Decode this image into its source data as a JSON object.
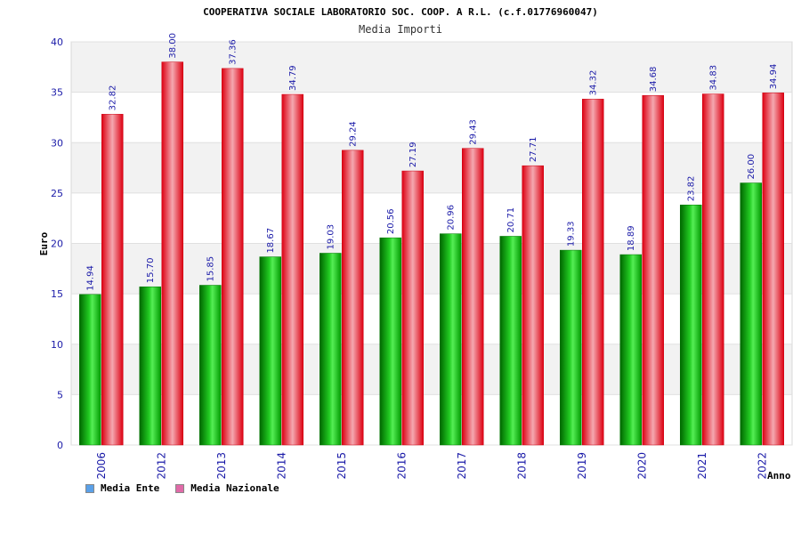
{
  "colors": {
    "ente": "#22bb22",
    "nazionale": "#ee1122",
    "legend_ente": "#5aa0e8",
    "legend_nazionale": "#e06aa8"
  },
  "chart_data": {
    "type": "bar",
    "title": "COOPERATIVA SOCIALE LABORATORIO SOC. COOP. A R.L. (c.f.01776960047)",
    "subtitle": "Media Importi",
    "xlabel": "Anno",
    "ylabel": "Euro",
    "ylim": [
      0,
      40
    ],
    "yticks": [
      0,
      5,
      10,
      15,
      20,
      25,
      30,
      35,
      40
    ],
    "grid": true,
    "legend_position": "bottom-left",
    "categories": [
      "2006",
      "2012",
      "2013",
      "2014",
      "2015",
      "2016",
      "2017",
      "2018",
      "2019",
      "2020",
      "2021",
      "2022"
    ],
    "series": [
      {
        "name": "Media Ente",
        "values": [
          14.94,
          15.7,
          15.85,
          18.67,
          19.03,
          20.56,
          20.96,
          20.71,
          19.33,
          18.89,
          23.82,
          26.0
        ],
        "labels": [
          "14.94",
          "15.70",
          "15.85",
          "18.67",
          "19.03",
          "20.56",
          "20.96",
          "20.71",
          "19.33",
          "18.89",
          "23.82",
          "26.00"
        ]
      },
      {
        "name": "Media Nazionale",
        "values": [
          32.82,
          38.0,
          37.36,
          34.79,
          29.24,
          27.19,
          29.43,
          27.71,
          34.32,
          34.68,
          34.83,
          34.94
        ],
        "labels": [
          "32.82",
          "38.00",
          "37.36",
          "34.79",
          "29.24",
          "27.19",
          "29.43",
          "27.71",
          "34.32",
          "34.68",
          "34.83",
          "34.94"
        ]
      }
    ]
  }
}
